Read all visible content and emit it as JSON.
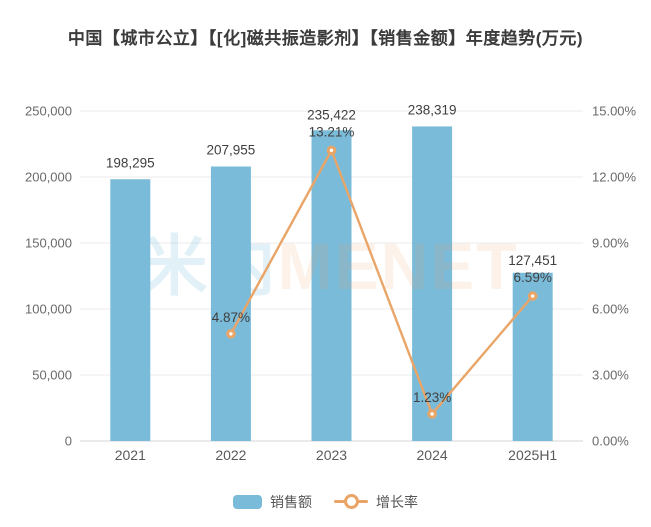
{
  "title": "中国【城市公立】【[化]磁共振造影剂】【销售金额】年度趋势(万元)",
  "watermark": {
    "cn": "米内",
    "en": "MENET"
  },
  "legend": [
    {
      "label": "销售额",
      "type": "bar"
    },
    {
      "label": "增长率",
      "type": "line"
    }
  ],
  "colors": {
    "bar": "#7abbd9",
    "line": "#e9a567",
    "grid": "#ebebeb",
    "axis": "#d4d4d4",
    "tick_text": "#6a6a6a",
    "x_text": "#5a5a5a",
    "data_label": "#3f3f3f",
    "title_text": "#3b3b3b",
    "watermark_cn": "rgba(122,187,217,0.22)",
    "watermark_en": "rgba(233,165,103,0.14)"
  },
  "chart_data": {
    "type": "bar+line",
    "title": "中国【城市公立】【[化]磁共振造影剂】【销售金额】年度趋势(万元)",
    "categories": [
      "2021",
      "2022",
      "2023",
      "2024",
      "2025H1"
    ],
    "series": [
      {
        "name": "销售额",
        "type": "bar",
        "axis": "left",
        "values": [
          198295,
          207955,
          235422,
          238319,
          127451
        ],
        "labels": [
          "198,295",
          "207,955",
          "235,422",
          "238,319",
          "127,451"
        ]
      },
      {
        "name": "增长率",
        "type": "line",
        "axis": "right",
        "values": [
          null,
          4.87,
          13.21,
          1.23,
          6.59
        ],
        "labels": [
          null,
          "4.87%",
          "13.21%",
          "1.23%",
          "6.59%"
        ]
      }
    ],
    "left_axis": {
      "min": 0,
      "max": 250000,
      "ticks": [
        "0",
        "50,000",
        "100,000",
        "150,000",
        "200,000",
        "250,000"
      ]
    },
    "right_axis": {
      "min": 0,
      "max": 15,
      "ticks": [
        "0.00%",
        "3.00%",
        "6.00%",
        "9.00%",
        "12.00%",
        "15.00%"
      ]
    },
    "grid": true,
    "legend_position": "bottom"
  }
}
